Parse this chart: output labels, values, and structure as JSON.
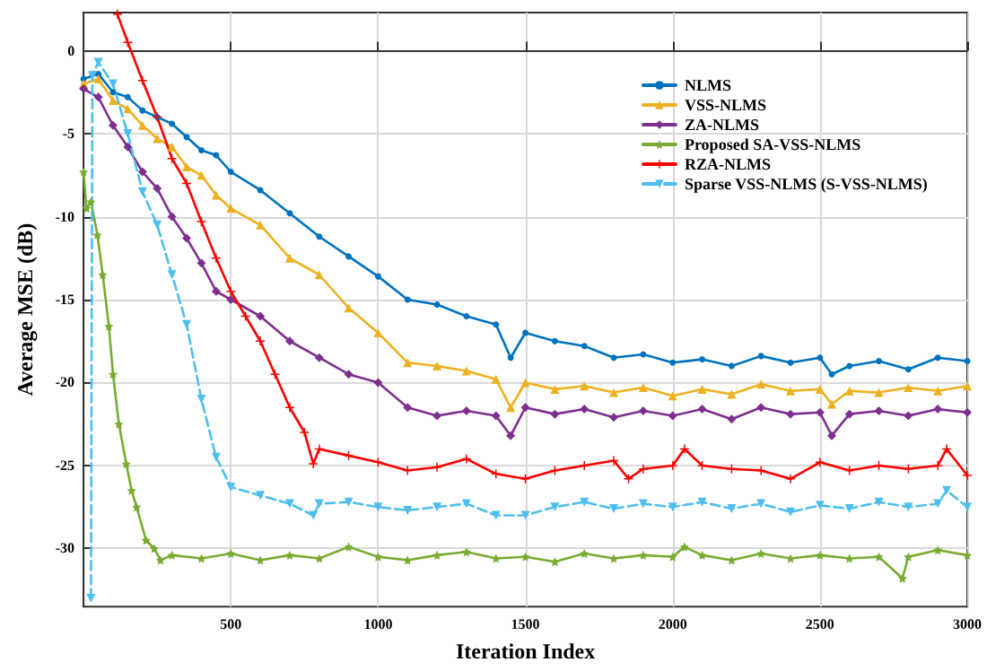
{
  "chart_data": {
    "type": "line",
    "xlabel": "Iteration Index",
    "ylabel": "Average MSE (dB)",
    "xlim": [
      0,
      3000
    ],
    "xticks": [
      500,
      1000,
      1500,
      2000,
      2500,
      3000
    ],
    "ylim": [
      -33.5,
      2.3
    ],
    "yticks": [
      -30,
      -25,
      -20,
      -15,
      -10,
      -5,
      0
    ],
    "grid": true,
    "legend": "top right",
    "series": [
      {
        "name": "NLMS",
        "color": "#0072bd",
        "marker": "circle",
        "line_style": "solid",
        "x": [
          0,
          50,
          100,
          150,
          200,
          250,
          300,
          350,
          400,
          450,
          500,
          600,
          700,
          800,
          900,
          1000,
          1100,
          1200,
          1300,
          1400,
          1450,
          1500,
          1600,
          1700,
          1800,
          1900,
          2000,
          2100,
          2200,
          2300,
          2400,
          2500,
          2540,
          2600,
          2700,
          2800,
          2900,
          3000
        ],
        "values": [
          -1.7,
          -1.4,
          -2.5,
          -2.8,
          -3.6,
          -4,
          -4.4,
          -5.2,
          -6,
          -6.3,
          -7.3,
          -8.4,
          -9.8,
          -11.2,
          -12.4,
          -13.6,
          -15,
          -15.3,
          -16,
          -16.5,
          -18.5,
          -17,
          -17.5,
          -17.8,
          -18.5,
          -18.3,
          -18.8,
          -18.6,
          -19,
          -18.4,
          -18.8,
          -18.5,
          -19.5,
          -19,
          -18.7,
          -19.2,
          -18.5,
          -18.7
        ]
      },
      {
        "name": "VSS-NLMS",
        "color": "#edb120",
        "marker": "triangle",
        "line_style": "solid",
        "x": [
          0,
          50,
          100,
          150,
          200,
          250,
          300,
          350,
          400,
          450,
          500,
          600,
          700,
          800,
          900,
          1000,
          1100,
          1200,
          1300,
          1400,
          1450,
          1500,
          1600,
          1700,
          1800,
          1900,
          2000,
          2100,
          2200,
          2300,
          2400,
          2500,
          2540,
          2600,
          2700,
          2800,
          2900,
          3000
        ],
        "values": [
          -2,
          -1.7,
          -3,
          -3.5,
          -4.5,
          -5.3,
          -5.8,
          -7,
          -7.5,
          -8.7,
          -9.5,
          -10.5,
          -12.5,
          -13.5,
          -15.5,
          -17,
          -18.8,
          -19,
          -19.3,
          -19.8,
          -21.5,
          -20,
          -20.4,
          -20.2,
          -20.6,
          -20.3,
          -20.8,
          -20.4,
          -20.7,
          -20.1,
          -20.5,
          -20.4,
          -21.3,
          -20.5,
          -20.6,
          -20.3,
          -20.5,
          -20.2
        ]
      },
      {
        "name": "ZA-NLMS",
        "color": "#7e2f8e",
        "marker": "diamond",
        "line_style": "solid",
        "x": [
          0,
          50,
          100,
          150,
          200,
          250,
          300,
          350,
          400,
          450,
          500,
          600,
          700,
          800,
          900,
          1000,
          1100,
          1200,
          1300,
          1400,
          1450,
          1500,
          1600,
          1700,
          1800,
          1900,
          2000,
          2100,
          2200,
          2300,
          2400,
          2500,
          2540,
          2600,
          2700,
          2800,
          2900,
          3000
        ],
        "values": [
          -2.3,
          -2.8,
          -4.5,
          -5.8,
          -7.3,
          -8.3,
          -10,
          -11.3,
          -12.8,
          -14.5,
          -15,
          -16,
          -17.5,
          -18.5,
          -19.5,
          -20,
          -21.5,
          -22,
          -21.7,
          -22,
          -23.2,
          -21.5,
          -21.9,
          -21.6,
          -22.1,
          -21.7,
          -22,
          -21.6,
          -22.2,
          -21.5,
          -21.9,
          -21.8,
          -23.2,
          -21.9,
          -21.7,
          -22,
          -21.6,
          -21.8
        ]
      },
      {
        "name": "Proposed SA-VSS-NLMS",
        "color": "#77ac30",
        "marker": "star",
        "line_style": "solid",
        "x": [
          0,
          10,
          25,
          47,
          65,
          86,
          100,
          120,
          145,
          163,
          180,
          212,
          240,
          261,
          300,
          400,
          500,
          600,
          700,
          800,
          900,
          1000,
          1100,
          1200,
          1300,
          1400,
          1500,
          1600,
          1700,
          1800,
          1900,
          2000,
          2040,
          2100,
          2200,
          2300,
          2400,
          2500,
          2600,
          2700,
          2780,
          2800,
          2900,
          3000
        ],
        "values": [
          -7.3,
          -9.5,
          -9.1,
          -11.1,
          -13.5,
          -16.6,
          -19.5,
          -22.5,
          -24.9,
          -26.5,
          -27.5,
          -29.5,
          -30,
          -30.7,
          -30.4,
          -30.6,
          -30.3,
          -30.7,
          -30.4,
          -30.6,
          -29.9,
          -30.5,
          -30.7,
          -30.4,
          -30.2,
          -30.6,
          -30.5,
          -30.8,
          -30.3,
          -30.6,
          -30.4,
          -30.5,
          -29.9,
          -30.4,
          -30.7,
          -30.3,
          -30.6,
          -30.4,
          -30.6,
          -30.5,
          -31.8,
          -30.5,
          -30.1,
          -30.4
        ]
      },
      {
        "name": "RZA-NLMS",
        "color": "#ff0000",
        "marker": "cross",
        "line_style": "solid",
        "x": [
          115,
          150,
          200,
          250,
          300,
          350,
          400,
          450,
          500,
          550,
          600,
          650,
          700,
          750,
          780,
          800,
          900,
          1000,
          1100,
          1200,
          1300,
          1400,
          1500,
          1600,
          1700,
          1800,
          1850,
          1900,
          2000,
          2040,
          2100,
          2200,
          2300,
          2400,
          2500,
          2600,
          2700,
          2800,
          2900,
          2930,
          3000
        ],
        "values": [
          2.2,
          0.5,
          -1.8,
          -4,
          -6.5,
          -8,
          -10.3,
          -12.5,
          -14.5,
          -16,
          -17.5,
          -19.5,
          -21.5,
          -23,
          -24.9,
          -24,
          -24.4,
          -24.8,
          -25.3,
          -25.1,
          -24.6,
          -25.5,
          -25.8,
          -25.3,
          -25,
          -24.7,
          -25.8,
          -25.2,
          -25,
          -24,
          -25,
          -25.2,
          -25.3,
          -25.8,
          -24.8,
          -25.3,
          -25,
          -25.2,
          -25,
          -24,
          -25.6
        ]
      },
      {
        "name": "Sparse VSS-NLMS (S-VSS-NLMS)",
        "color": "#4dbeee",
        "marker": "triangle-down",
        "line_style": "dashed",
        "x": [
          25,
          30,
          50,
          100,
          150,
          200,
          250,
          300,
          350,
          400,
          450,
          500,
          600,
          700,
          780,
          800,
          900,
          1000,
          1100,
          1200,
          1300,
          1400,
          1500,
          1600,
          1700,
          1800,
          1900,
          2000,
          2100,
          2200,
          2300,
          2400,
          2500,
          2600,
          2700,
          2800,
          2900,
          2930,
          3000
        ],
        "values": [
          -33,
          -1.5,
          -0.7,
          -2,
          -5,
          -8.5,
          -10.5,
          -13.5,
          -16.5,
          -21,
          -24.5,
          -26.3,
          -26.8,
          -27.3,
          -28,
          -27.3,
          -27.2,
          -27.5,
          -27.7,
          -27.5,
          -27.3,
          -28,
          -28,
          -27.5,
          -27.2,
          -27.6,
          -27.3,
          -27.5,
          -27.2,
          -27.6,
          -27.3,
          -27.8,
          -27.4,
          -27.6,
          -27.2,
          -27.5,
          -27.3,
          -26.5,
          -27.5
        ]
      }
    ]
  }
}
